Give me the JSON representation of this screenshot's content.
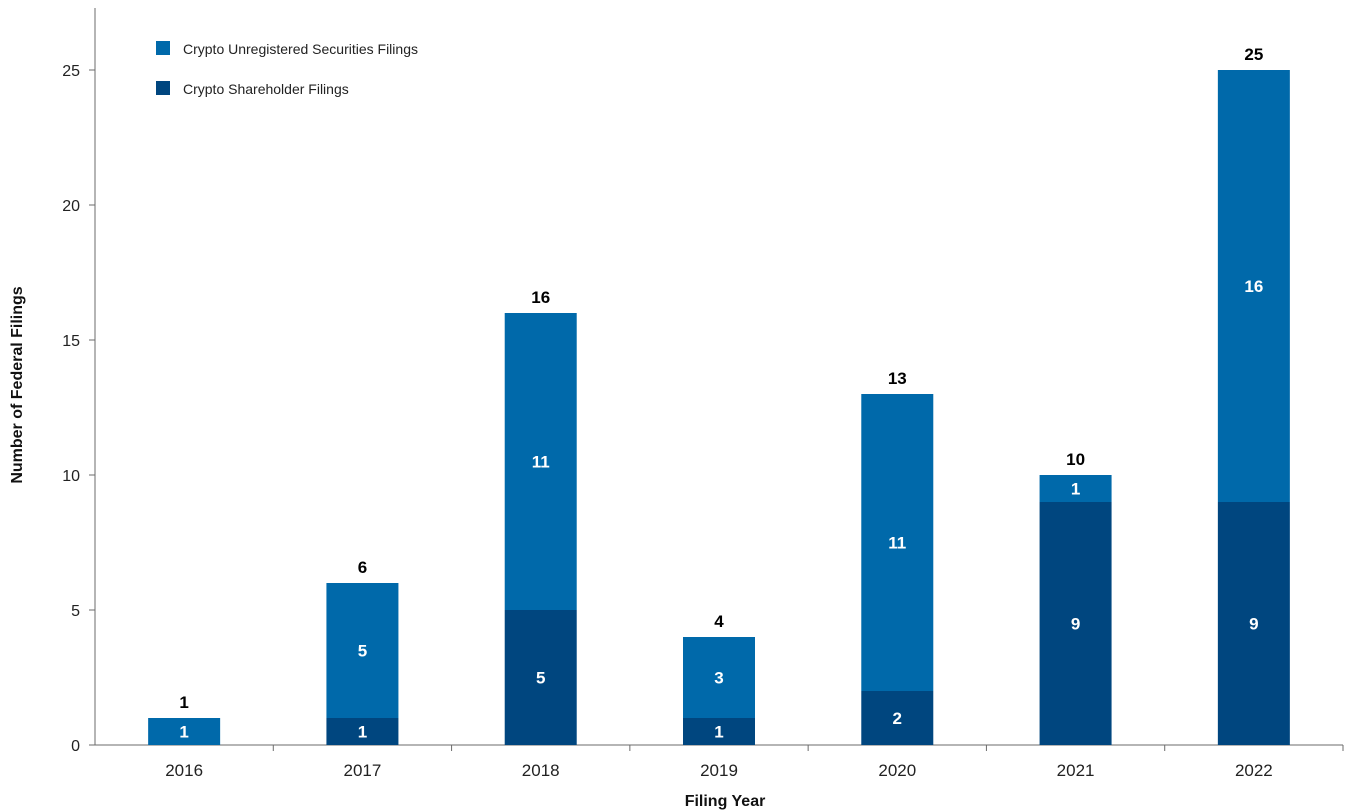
{
  "chart_data": {
    "type": "bar",
    "stacked": true,
    "title": "",
    "xlabel": "Filing Year",
    "ylabel": "Number of Federal Filings",
    "categories": [
      "2016",
      "2017",
      "2018",
      "2019",
      "2020",
      "2021",
      "2022"
    ],
    "series": [
      {
        "name": "Crypto Shareholder Filings",
        "color": "#00467f",
        "values": [
          0,
          1,
          5,
          1,
          2,
          9,
          9
        ]
      },
      {
        "name": "Crypto Unregistered Securities Filings",
        "color": "#0069aa",
        "values": [
          1,
          5,
          11,
          3,
          11,
          1,
          16
        ]
      }
    ],
    "totals": [
      1,
      6,
      16,
      4,
      13,
      10,
      25
    ],
    "ylim": [
      0,
      25
    ],
    "yticks": [
      0,
      5,
      10,
      15,
      20,
      25
    ],
    "grid": false,
    "legend_position": "top-left",
    "legend_order": [
      "Crypto Unregistered Securities Filings",
      "Crypto Shareholder Filings"
    ]
  }
}
